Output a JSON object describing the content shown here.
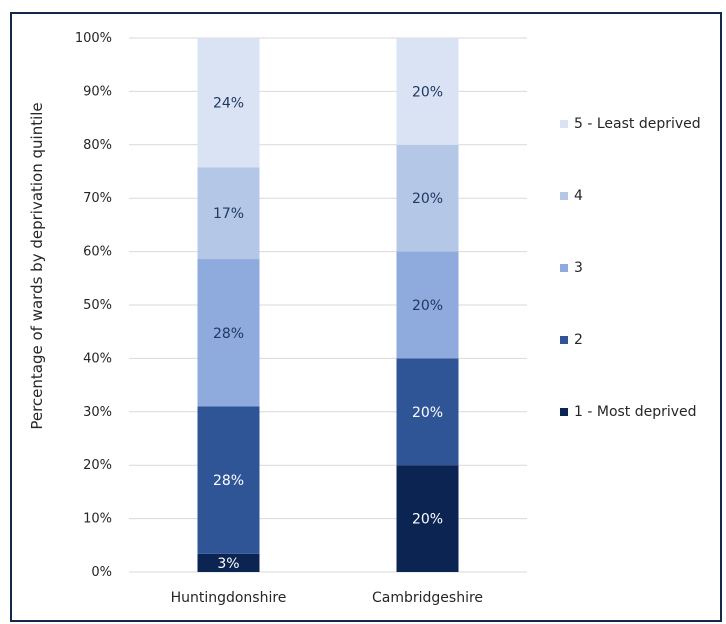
{
  "chart_data": {
    "type": "bar",
    "stacked": true,
    "categories": [
      "Huntingdonshire",
      "Cambridgeshire"
    ],
    "ylabel": "Percentage of wards by deprivation quintile",
    "xlabel": "",
    "ylim": [
      0,
      100
    ],
    "y_ticks": [
      "0%",
      "10%",
      "20%",
      "30%",
      "40%",
      "50%",
      "60%",
      "70%",
      "80%",
      "90%",
      "100%"
    ],
    "grid": true,
    "legend_position": "right",
    "series": [
      {
        "name": "1 - Most deprived",
        "values": [
          3.4,
          20
        ],
        "labels": [
          "3%",
          "20%"
        ],
        "color": "#0b2452",
        "label_color": "#ffffff"
      },
      {
        "name": "2",
        "values": [
          27.6,
          20
        ],
        "labels": [
          "28%",
          "20%"
        ],
        "color": "#2f5597",
        "label_color": "#ffffff"
      },
      {
        "name": "3",
        "values": [
          27.6,
          20
        ],
        "labels": [
          "28%",
          "20%"
        ],
        "color": "#8faadc",
        "label_color": "#1f3864"
      },
      {
        "name": "4",
        "values": [
          17.2,
          20
        ],
        "labels": [
          "17%",
          "20%"
        ],
        "color": "#b4c7e7",
        "label_color": "#1f3864"
      },
      {
        "name": "5 - Least deprived",
        "values": [
          24.2,
          20
        ],
        "labels": [
          "24%",
          "20%"
        ],
        "color": "#dae3f3",
        "label_color": "#1f3864"
      }
    ]
  }
}
